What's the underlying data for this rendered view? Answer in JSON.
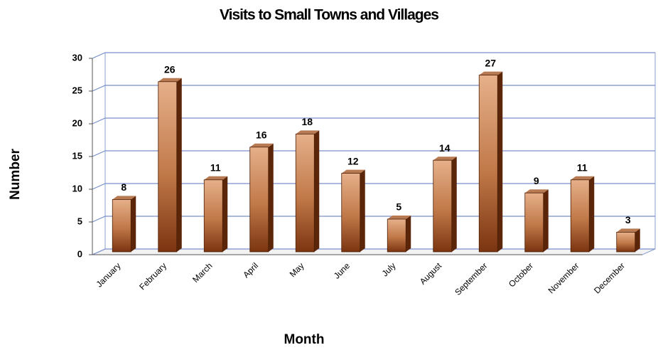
{
  "chart_data": {
    "type": "bar",
    "title": "Visits to Small Towns and Villages",
    "x_label": "Month",
    "y_label": "Number",
    "categories": [
      "January",
      "February",
      "March",
      "April",
      "May",
      "June",
      "July",
      "August",
      "September",
      "October",
      "November",
      "December"
    ],
    "values": [
      8,
      26,
      11,
      16,
      18,
      12,
      5,
      14,
      27,
      9,
      11,
      3
    ],
    "color": "#c07848",
    "ylim": [
      0,
      30
    ],
    "yticks": [
      0,
      5,
      10,
      15,
      20,
      25,
      30
    ],
    "grid": true
  }
}
